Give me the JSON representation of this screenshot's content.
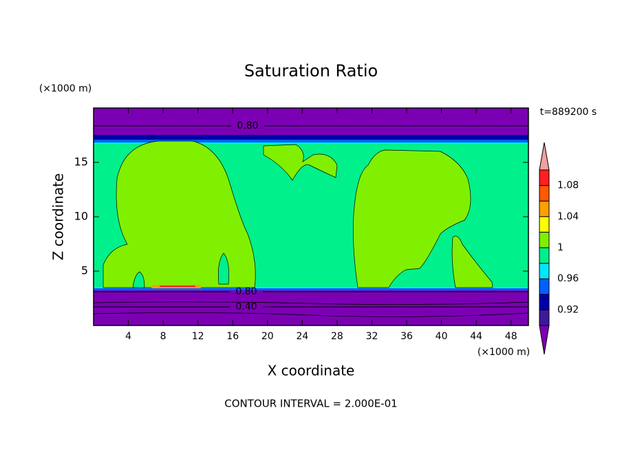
{
  "chart_data": {
    "type": "contour",
    "title": "Saturation Ratio",
    "x_label": "X coordinate",
    "y_label": "Z coordinate",
    "x_unit": "(×1000 m)",
    "y_unit": "(×1000 m)",
    "time_label": "t=889200 s",
    "footer": "CONTOUR INTERVAL = 2.000E-01",
    "xlim": [
      0,
      50
    ],
    "xticks": [
      4,
      8,
      12,
      16,
      20,
      24,
      28,
      32,
      36,
      40,
      44,
      48
    ],
    "ylim": [
      0,
      20
    ],
    "yticks": [
      5,
      10,
      15
    ],
    "contour_labels": [
      {
        "value": 0.8,
        "label": "0.80"
      },
      {
        "value": 0.8,
        "label": "0.80"
      },
      {
        "value": 0.4,
        "label": "0.40"
      }
    ],
    "colorbar": {
      "levels": [
        0.9,
        0.92,
        0.94,
        0.96,
        0.98,
        1,
        1.02,
        1.04,
        1.06,
        1.08,
        1.1
      ],
      "labels": [
        0.92,
        0.96,
        1,
        1.04,
        1.08
      ],
      "colors": [
        "#7b00b3",
        "#3c1a9c",
        "#0000a8",
        "#0060ff",
        "#00e6ff",
        "#00f08c",
        "#80f000",
        "#ffff00",
        "#ffa000",
        "#ff5a00",
        "#ff2020",
        "#f0a0a0"
      ]
    }
  }
}
